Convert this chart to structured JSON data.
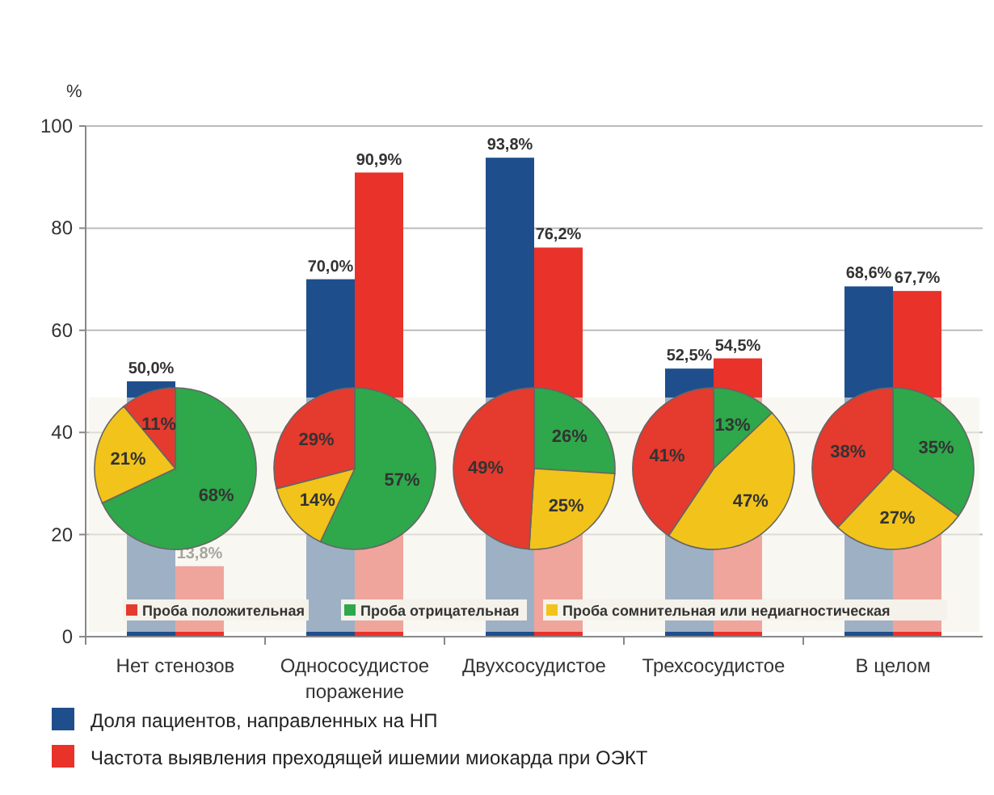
{
  "chart_data": [
    {
      "type": "bar",
      "ylabel": "%",
      "categories": [
        "Нет стенозов",
        "Однососудистое поражение",
        "Двухсосудистое",
        "Трехсосудистое",
        "В целом"
      ],
      "series": [
        {
          "name": "Доля пациентов, направленных на НП",
          "color": "#1f4e8c",
          "values": [
            50,
            70,
            93.8,
            52.5,
            68.6
          ],
          "value_labels": [
            "50,0%",
            "70,0%",
            "93,8%",
            "52,5%",
            "68,6%"
          ]
        },
        {
          "name": "Частота выявления преходящей ишемии миокарда при ОЭКТ",
          "color": "#e8322a",
          "values": [
            13.8,
            90.9,
            76.2,
            54.5,
            67.7
          ],
          "value_labels": [
            "13,8%",
            "90,9%",
            "76,2%",
            "54,5%",
            "67,7%"
          ]
        }
      ],
      "ylim": [
        0,
        100
      ],
      "yticks": [
        0,
        20,
        40,
        60,
        80,
        100
      ],
      "grid": "y",
      "legend": "bottom"
    },
    {
      "type": "pie",
      "categories": [
        "Проба положительная",
        "Проба отрицательная",
        "Проба сомнительная или недиагностическая"
      ],
      "values": [
        11,
        68,
        21
      ],
      "colors": [
        "#e53a2e",
        "#2ea84a",
        "#f2c31a"
      ],
      "value_labels": [
        "11%",
        "68%",
        "21%"
      ],
      "legend": "bottom"
    },
    {
      "type": "pie",
      "categories": [
        null,
        null,
        null
      ],
      "values": [
        29,
        57,
        14
      ],
      "colors": [
        "#e53a2e",
        "#2ea84a",
        "#f2c31a"
      ],
      "value_labels": [
        "29%",
        "57%",
        "14%"
      ]
    },
    {
      "type": "pie",
      "categories": [
        null,
        null,
        null
      ],
      "values": [
        49,
        26,
        25
      ],
      "colors": [
        "#e53a2e",
        "#2ea84a",
        "#f2c31a"
      ],
      "value_labels": [
        "49%",
        "26%",
        "25%"
      ]
    },
    {
      "type": "pie",
      "categories": [
        null,
        null,
        null
      ],
      "values": [
        41,
        13,
        47
      ],
      "colors": [
        "#e53a2e",
        "#2ea84a",
        "#f2c31a"
      ],
      "value_labels": [
        "41%",
        "13%",
        "47%"
      ]
    },
    {
      "type": "pie",
      "categories": [
        null,
        null,
        null
      ],
      "values": [
        38,
        35,
        27
      ],
      "colors": [
        "#e53a2e",
        "#2ea84a",
        "#f2c31a"
      ],
      "value_labels": [
        "38%",
        "35%",
        "27%"
      ]
    }
  ]
}
